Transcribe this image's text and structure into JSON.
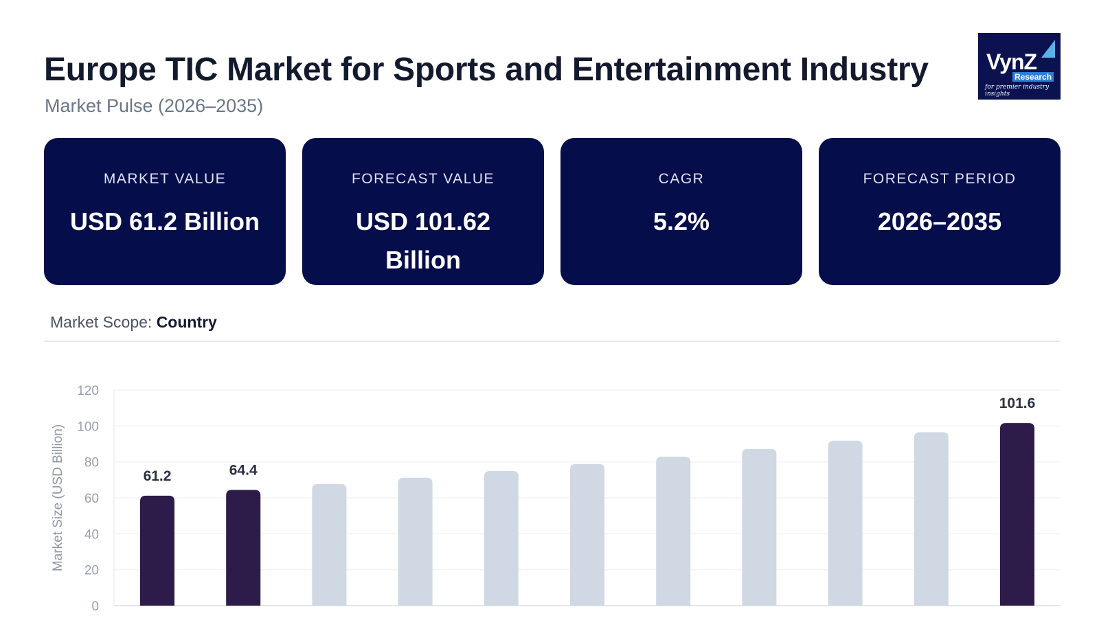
{
  "header": {
    "title": "Europe TIC Market for Sports and Entertainment Industry",
    "subtitle": "Market Pulse (2026–2035)"
  },
  "logo": {
    "name": "VynZ",
    "badge": "Research",
    "tagline": "for premier industry insights"
  },
  "cards": [
    {
      "label": "MARKET VALUE",
      "value": "USD 61.2 Billion"
    },
    {
      "label": "FORECAST VALUE",
      "value": "USD 101.62 Billion"
    },
    {
      "label": "CAGR",
      "value": "5.2%"
    },
    {
      "label": "FORECAST PERIOD",
      "value": "2026–2035"
    }
  ],
  "scope": {
    "label": "Market Scope:",
    "value": "Country"
  },
  "colors": {
    "highlight": "#2d1b4a",
    "muted": "#cfd8e3",
    "card": "#050d4a"
  },
  "chart_data": {
    "type": "bar",
    "ylabel": "Market Size (USD Billion)",
    "ylim": [
      0,
      120
    ],
    "yticks": [
      0,
      20,
      40,
      60,
      80,
      100,
      120
    ],
    "grid": true,
    "values": [
      61.2,
      64.4,
      67.7,
      71.2,
      74.9,
      78.8,
      82.9,
      87.2,
      91.8,
      96.5,
      101.6
    ],
    "highlighted": [
      true,
      true,
      false,
      false,
      false,
      false,
      false,
      false,
      false,
      false,
      true
    ],
    "data_labels": [
      "61.2",
      "64.4",
      "",
      "",
      "",
      "",
      "",
      "",
      "",
      "",
      "101.6"
    ]
  }
}
